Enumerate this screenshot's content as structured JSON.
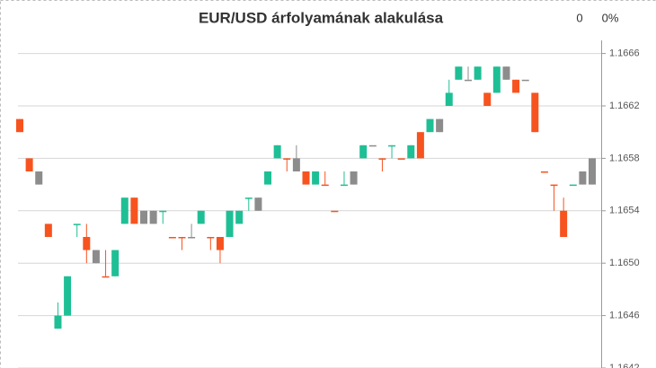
{
  "chart_data": {
    "type": "candlestick",
    "title": "EUR/USD árfolyamának alakulása",
    "counter": "0",
    "percent": "0%",
    "ylim": [
      1.1642,
      1.1667
    ],
    "yticks": [
      {
        "value": 1.1642,
        "label": "1.1642"
      },
      1.1646,
      {
        "value": 1.165,
        "label": "1.1650"
      },
      1.1654,
      1.1658,
      1.1662,
      1.1666
    ],
    "grid": true,
    "open": [
      1.1661,
      1.1658,
      1.1657,
      1.1653,
      1.1645,
      1.1646,
      1.1653,
      1.1652,
      1.1651,
      1.1649,
      1.1649,
      1.1653,
      1.1655,
      1.1654,
      1.1654,
      1.1654,
      1.1652,
      1.1652,
      1.1652,
      1.1653,
      1.1652,
      1.1652,
      1.1652,
      1.1653,
      1.1655,
      1.1655,
      1.1656,
      1.1658,
      1.1658,
      1.1658,
      1.1657,
      1.1656,
      1.1656,
      1.1654,
      1.1656,
      1.1657,
      1.1658,
      1.1659,
      1.1658,
      1.1659,
      1.1658,
      1.1658,
      1.166,
      1.166,
      1.1661,
      1.1662,
      1.1664,
      1.1664,
      1.1664,
      1.1663,
      1.1663,
      1.1665,
      1.1664,
      1.1664,
      1.1663,
      1.1657,
      1.1656,
      1.1654,
      1.1656,
      1.1656,
      1.1656
    ],
    "high": [
      1.1661,
      1.1658,
      1.1657,
      1.1653,
      1.1647,
      1.1649,
      1.1653,
      1.1653,
      1.1651,
      1.1651,
      1.1651,
      1.1655,
      1.1655,
      1.1654,
      1.1654,
      1.1654,
      1.1652,
      1.1652,
      1.1653,
      1.1654,
      1.1652,
      1.1652,
      1.1654,
      1.1654,
      1.1655,
      1.1655,
      1.1657,
      1.1659,
      1.1658,
      1.1659,
      1.1657,
      1.1657,
      1.1657,
      1.1654,
      1.1657,
      1.1657,
      1.1659,
      1.1659,
      1.1658,
      1.1659,
      1.1658,
      1.1659,
      1.166,
      1.1661,
      1.1661,
      1.1664,
      1.1665,
      1.1665,
      1.1665,
      1.1663,
      1.1665,
      1.1665,
      1.1664,
      1.1664,
      1.1663,
      1.1657,
      1.1656,
      1.1655,
      1.1656,
      1.1657,
      1.1658
    ],
    "low": [
      1.166,
      1.1657,
      1.1656,
      1.1652,
      1.1645,
      1.1646,
      1.1652,
      1.165,
      1.165,
      1.1649,
      1.1649,
      1.1653,
      1.1653,
      1.1653,
      1.1653,
      1.1653,
      1.1652,
      1.1651,
      1.1652,
      1.1653,
      1.1651,
      1.165,
      1.1652,
      1.1653,
      1.1654,
      1.1654,
      1.1656,
      1.1658,
      1.1657,
      1.1657,
      1.1656,
      1.1656,
      1.1656,
      1.1654,
      1.1656,
      1.1656,
      1.1658,
      1.1659,
      1.1657,
      1.1658,
      1.1658,
      1.1658,
      1.1658,
      1.166,
      1.166,
      1.1662,
      1.1664,
      1.1664,
      1.1664,
      1.1662,
      1.1663,
      1.1664,
      1.1663,
      1.1664,
      1.166,
      1.1657,
      1.1654,
      1.1652,
      1.1656,
      1.1656,
      1.1656
    ],
    "close": [
      1.166,
      1.1657,
      1.1656,
      1.1652,
      1.1646,
      1.1649,
      1.1653,
      1.1651,
      1.165,
      1.1649,
      1.1651,
      1.1655,
      1.1653,
      1.1653,
      1.1653,
      1.1654,
      1.1652,
      1.1652,
      1.1652,
      1.1654,
      1.1652,
      1.1651,
      1.1654,
      1.1654,
      1.1655,
      1.1654,
      1.1657,
      1.1659,
      1.1658,
      1.1657,
      1.1656,
      1.1657,
      1.1656,
      1.1654,
      1.1656,
      1.1656,
      1.1659,
      1.1659,
      1.1658,
      1.1659,
      1.1658,
      1.1659,
      1.1658,
      1.1661,
      1.166,
      1.1663,
      1.1665,
      1.1664,
      1.1665,
      1.1662,
      1.1665,
      1.1664,
      1.1663,
      1.1664,
      1.166,
      1.1657,
      1.1656,
      1.1652,
      1.1656,
      1.1657,
      1.1658
    ],
    "colors": [
      "#f7531f",
      "#f7531f",
      "#8c8c8c",
      "#f7531f",
      "#1fbf95",
      "#1fbf95",
      "#1fbf95",
      "#f7531f",
      "#8c8c8c",
      "#f7531f",
      "#1fbf95",
      "#1fbf95",
      "#f7531f",
      "#8c8c8c",
      "#8c8c8c",
      "#1fbf95",
      "#f7531f",
      "#f7531f",
      "#8c8c8c",
      "#1fbf95",
      "#f7531f",
      "#f7531f",
      "#1fbf95",
      "#1fbf95",
      "#1fbf95",
      "#8c8c8c",
      "#1fbf95",
      "#1fbf95",
      "#f7531f",
      "#8c8c8c",
      "#f7531f",
      "#1fbf95",
      "#f7531f",
      "#f7531f",
      "#1fbf95",
      "#8c8c8c",
      "#1fbf95",
      "#8c8c8c",
      "#f7531f",
      "#1fbf95",
      "#f7531f",
      "#1fbf95",
      "#f7531f",
      "#1fbf95",
      "#8c8c8c",
      "#1fbf95",
      "#1fbf95",
      "#8c8c8c",
      "#1fbf95",
      "#f7531f",
      "#1fbf95",
      "#8c8c8c",
      "#f7531f",
      "#8c8c8c",
      "#f7531f",
      "#f7531f",
      "#f7531f",
      "#f7531f",
      "#1fbf95",
      "#8c8c8c",
      "#8c8c8c"
    ]
  }
}
